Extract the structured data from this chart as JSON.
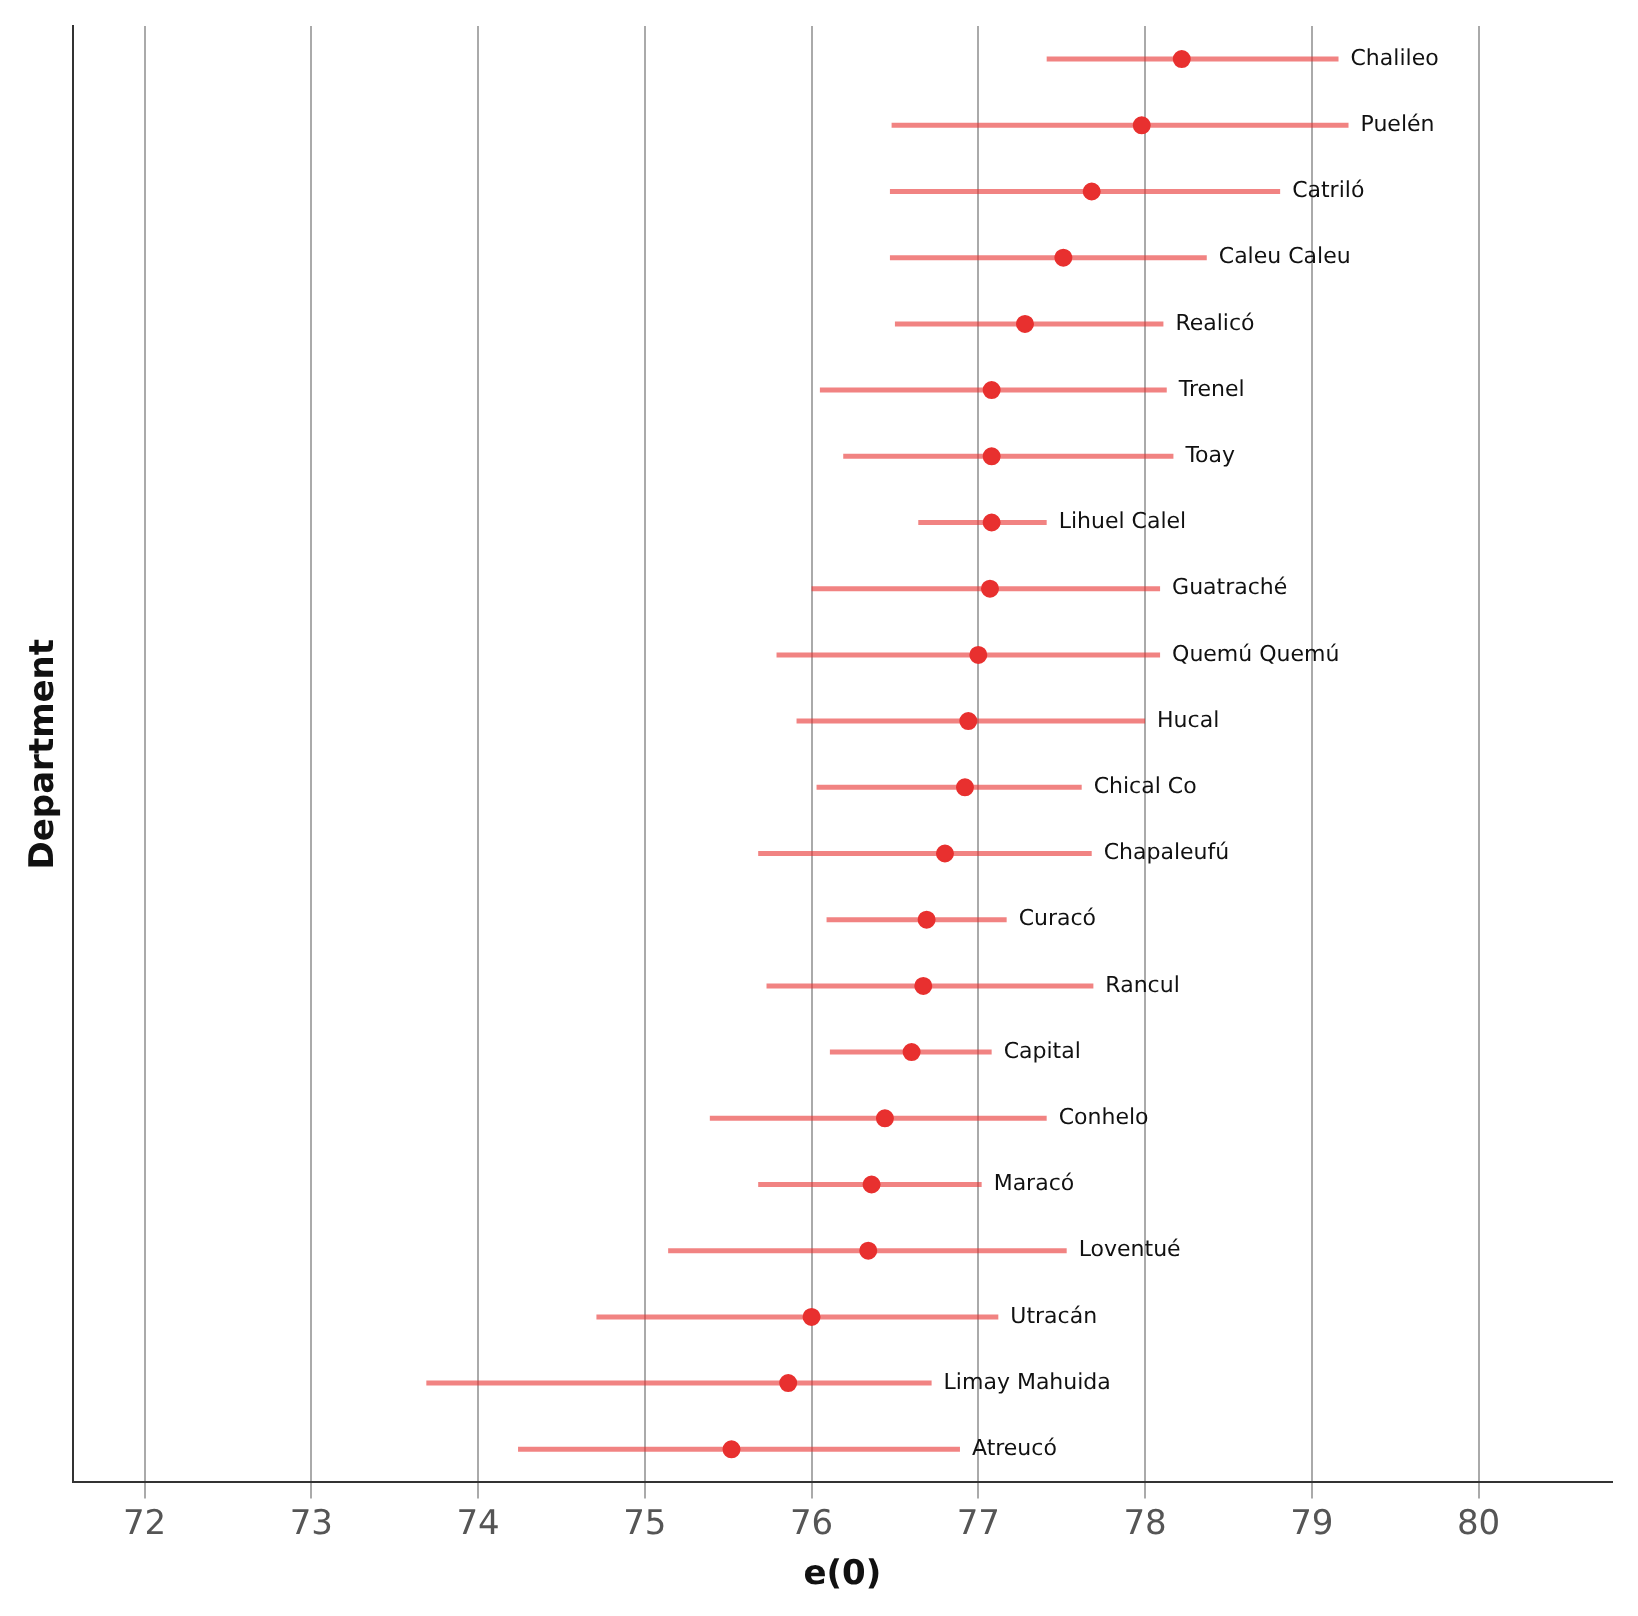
{
  "chart_data": {
    "type": "scatter",
    "orientation": "horizontal",
    "xlabel": "e(0)",
    "ylabel": "Department",
    "categories": [
      "Chalileo",
      "Puelén",
      "Catriló",
      "Caleu Caleu",
      "Realicó",
      "Trenel",
      "Toay",
      "Lihuel Calel",
      "Guatraché",
      "Quemú Quemú",
      "Hucal",
      "Chical Co",
      "Chapaleufú",
      "Curacó",
      "Rancul",
      "Capital",
      "Conhelo",
      "Maracó",
      "Loventué",
      "Utracán",
      "Limay Mahuida",
      "Atreucó"
    ],
    "series": [
      {
        "color": "#e8302f",
        "values": [
          78.22,
          77.98,
          77.68,
          77.51,
          77.28,
          77.08,
          77.08,
          77.08,
          77.07,
          77.0,
          76.94,
          76.92,
          76.8,
          76.69,
          76.67,
          76.6,
          76.44,
          76.36,
          76.34,
          76.0,
          75.86,
          75.52
        ],
        "errors": [
          [
            77.41,
            79.16
          ],
          [
            76.48,
            79.22
          ],
          [
            76.47,
            78.81
          ],
          [
            76.47,
            78.37
          ],
          [
            76.5,
            78.11
          ],
          [
            76.05,
            78.13
          ],
          [
            76.19,
            78.17
          ],
          [
            76.64,
            77.41
          ],
          [
            76.0,
            78.09
          ],
          [
            75.79,
            78.09
          ],
          [
            75.91,
            78.0
          ],
          [
            76.03,
            77.62
          ],
          [
            75.68,
            77.68
          ],
          [
            76.09,
            77.17
          ],
          [
            75.73,
            77.69
          ],
          [
            76.11,
            77.08
          ],
          [
            75.39,
            77.41
          ],
          [
            75.68,
            77.02
          ],
          [
            75.14,
            77.53
          ],
          [
            74.71,
            77.12
          ],
          [
            73.69,
            76.72
          ],
          [
            74.24,
            76.89
          ]
        ]
      }
    ],
    "xlim": [
      71.57,
      80.8
    ],
    "xticks": [
      72,
      73,
      74,
      75,
      76,
      77,
      78,
      79,
      80
    ],
    "grid": "x",
    "tick_labels": "x",
    "marker": "circle",
    "legend": false
  }
}
